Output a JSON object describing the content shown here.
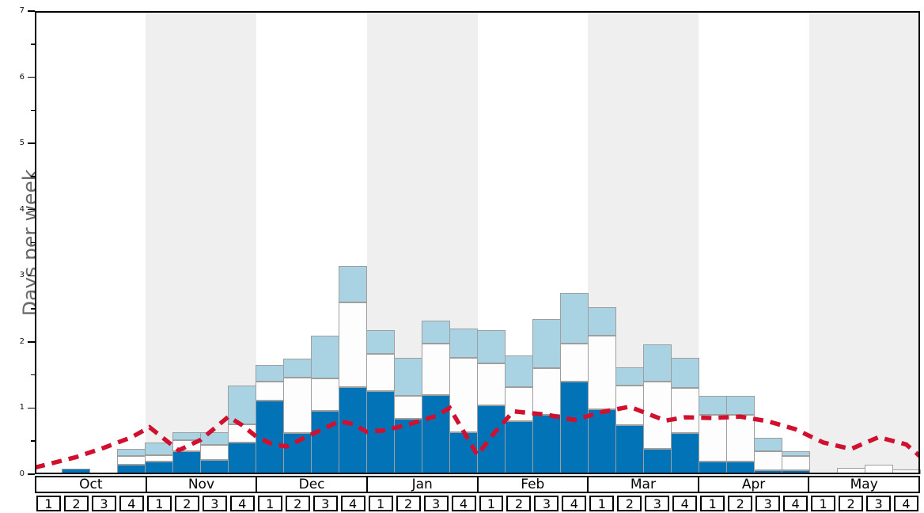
{
  "chart_data": {
    "type": "bar",
    "title": "",
    "ylabel": "Days per week",
    "ylim": [
      0,
      7
    ],
    "ytick_labels": [
      "0",
      "1",
      "2",
      "3",
      "4",
      "5",
      "6",
      "7"
    ],
    "minor_tick_step": 0.5,
    "grid": false,
    "legend": "none",
    "months": [
      "Oct",
      "Nov",
      "Dec",
      "Jan",
      "Feb",
      "Mar",
      "Apr",
      "May"
    ],
    "week_labels": [
      "1",
      "2",
      "3",
      "4"
    ],
    "shaded_month_indices": [
      1,
      3,
      5,
      7
    ],
    "categories": [
      "Oct-1",
      "Oct-2",
      "Oct-3",
      "Oct-4",
      "Nov-1",
      "Nov-2",
      "Nov-3",
      "Nov-4",
      "Dec-1",
      "Dec-2",
      "Dec-3",
      "Dec-4",
      "Jan-1",
      "Jan-2",
      "Jan-3",
      "Jan-4",
      "Feb-1",
      "Feb-2",
      "Feb-3",
      "Feb-4",
      "Mar-1",
      "Mar-2",
      "Mar-3",
      "Mar-4",
      "Apr-1",
      "Apr-2",
      "Apr-3",
      "Apr-4",
      "May-1",
      "May-2",
      "May-3",
      "May-4"
    ],
    "series": [
      {
        "name": "dark-blue-bottom",
        "color": "#0173b6",
        "values": [
          0,
          0.08,
          0,
          0.14,
          0.19,
          0.35,
          0.21,
          0.48,
          1.11,
          0.62,
          0.96,
          1.32,
          1.26,
          0.84,
          1.2,
          0.64,
          1.04,
          0.8,
          0.9,
          1.4,
          0.98,
          0.74,
          0.38,
          0.62,
          0.19,
          0.19,
          0.06,
          0.06,
          0,
          0,
          0,
          0
        ]
      },
      {
        "name": "white-middle",
        "color": "#fdfdfd",
        "values": [
          0,
          0,
          0,
          0.14,
          0.1,
          0.16,
          0.23,
          0.28,
          0.29,
          0.84,
          0.49,
          1.28,
          0.56,
          0.34,
          0.78,
          1.12,
          0.64,
          0.52,
          0.7,
          0.58,
          1.12,
          0.6,
          1.02,
          0.68,
          0.71,
          0.71,
          0.29,
          0.21,
          0,
          0.1,
          0.14,
          0.07
        ]
      },
      {
        "name": "light-blue-top",
        "color": "#a9d3e3",
        "values": [
          0,
          0,
          0,
          0.1,
          0.19,
          0.13,
          0.2,
          0.58,
          0.25,
          0.29,
          0.65,
          0.55,
          0.36,
          0.58,
          0.34,
          0.44,
          0.5,
          0.48,
          0.74,
          0.76,
          0.42,
          0.28,
          0.56,
          0.46,
          0.29,
          0.29,
          0.2,
          0.08,
          0,
          0,
          0,
          0
        ]
      }
    ],
    "red_dashed_line": {
      "name": "average-days-line",
      "color": "#d11030",
      "style": "dashed",
      "points_week_units": [
        [
          0,
          0.1
        ],
        [
          1.5,
          0.26
        ],
        [
          2.5,
          0.4
        ],
        [
          3.5,
          0.56
        ],
        [
          4.15,
          0.71
        ],
        [
          5.2,
          0.36
        ],
        [
          6.0,
          0.52
        ],
        [
          7.0,
          0.87
        ],
        [
          7.5,
          0.74
        ],
        [
          8.0,
          0.57
        ],
        [
          8.6,
          0.45
        ],
        [
          9.1,
          0.42
        ],
        [
          9.6,
          0.52
        ],
        [
          10.5,
          0.7
        ],
        [
          11.0,
          0.8
        ],
        [
          11.5,
          0.76
        ],
        [
          12.0,
          0.64
        ],
        [
          12.6,
          0.66
        ],
        [
          13.5,
          0.75
        ],
        [
          14.5,
          0.88
        ],
        [
          15.0,
          1.0
        ],
        [
          16.0,
          0.29
        ],
        [
          16.6,
          0.62
        ],
        [
          17.3,
          0.95
        ],
        [
          18.5,
          0.9
        ],
        [
          19.5,
          0.82
        ],
        [
          20.5,
          0.94
        ],
        [
          21.5,
          1.02
        ],
        [
          22.8,
          0.81
        ],
        [
          23.5,
          0.86
        ],
        [
          24.5,
          0.85
        ],
        [
          25.5,
          0.87
        ],
        [
          26.5,
          0.8
        ],
        [
          27.5,
          0.68
        ],
        [
          28.5,
          0.48
        ],
        [
          29.5,
          0.38
        ],
        [
          30.5,
          0.56
        ],
        [
          31.5,
          0.45
        ],
        [
          32,
          0.27
        ]
      ]
    },
    "colors": {
      "band_gray": "#efefef",
      "bar_border": "#9e9e9e",
      "axis_border": "#000000",
      "ylabel_gray": "#686868"
    }
  }
}
